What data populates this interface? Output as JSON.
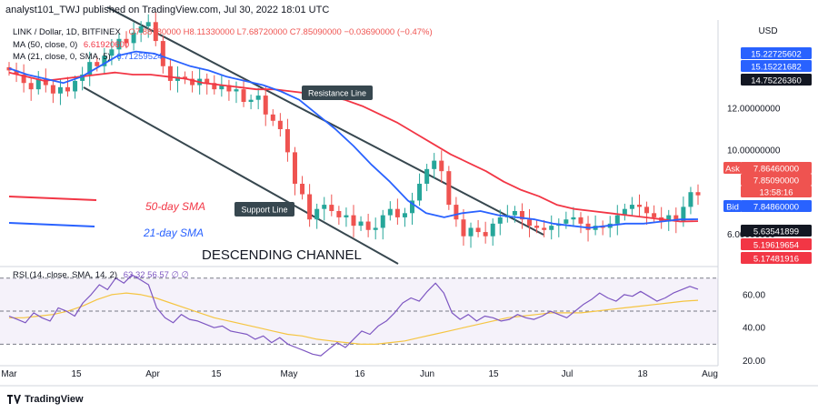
{
  "header": {
    "attribution": "analyst101_TWJ published on TradingView.com, Jul 30, 2022 18:01 UTC"
  },
  "legend": {
    "symbol": "LINK / Dollar, 1D, BITFINEX",
    "ohlc": "O7.88780000  H8.11330000  L7.68720000  C7.85090000  −0.03690000 (−0.47%)",
    "ma50": "MA (50, close, 0)",
    "ma50_value": "6.61920600",
    "ma21": "MA (21, close, 0, SMA, 5)",
    "ma21_value": "6.71259524",
    "rsi": "RSI (14, close, SMA, 14, 2)",
    "rsi_values": "63.32  56.57  ∅  ∅"
  },
  "annotations": {
    "resistance": "Resistance Line",
    "support": "Support Line",
    "sma50": "50-day SMA",
    "sma21": "21-day SMA",
    "channel": "DESCENDING CHANNEL"
  },
  "axis": {
    "currency": "USD",
    "price_ticks": [
      "12.00000000",
      "10.00000000",
      "6.00000000"
    ],
    "rsi_ticks": [
      "60.00",
      "40.00",
      "20.00"
    ],
    "x_labels": [
      "Mar",
      "15",
      "Apr",
      "15",
      "May",
      "16",
      "Jun",
      "15",
      "Jul",
      "18",
      "Aug"
    ]
  },
  "price_tags": [
    {
      "text": "15.22725602",
      "color": "#2962ff"
    },
    {
      "text": "15.15221682",
      "color": "#2962ff"
    },
    {
      "text": "14.75226360",
      "color": "#131722"
    },
    {
      "text": "Ask",
      "color": "#ef5350"
    },
    {
      "text": "7.86460000",
      "color": "#ef5350"
    },
    {
      "text": "7.85090000",
      "color": "#ef5350"
    },
    {
      "text": "13:58:16",
      "color": "#ef5350"
    },
    {
      "text": "Bid",
      "color": "#2962ff"
    },
    {
      "text": "7.84860000",
      "color": "#2962ff"
    },
    {
      "text": "5.63541899",
      "color": "#131722"
    },
    {
      "text": "5.19619654",
      "color": "#f23645"
    },
    {
      "text": "5.17481916",
      "color": "#f23645"
    }
  ],
  "brand": "TradingView",
  "colors": {
    "up": "#26a69a",
    "down": "#ef5350",
    "ma50": "#f23645",
    "ma21": "#2962ff",
    "rsi": "#7e57c2",
    "rsi_ma": "#f5c542"
  },
  "chart_data": {
    "type": "candlestick",
    "price_scale": [
      4.5,
      16.2
    ],
    "closes": [
      13.8,
      13.6,
      13.2,
      12.9,
      13.4,
      13.1,
      12.7,
      13.0,
      12.8,
      13.3,
      13.6,
      14.2,
      14.0,
      14.5,
      14.8,
      15.3,
      15.1,
      15.6,
      15.9,
      16.1,
      15.2,
      14.0,
      13.3,
      13.5,
      13.4,
      13.1,
      13.4,
      13.2,
      12.9,
      13.1,
      12.8,
      12.9,
      12.3,
      12.4,
      12.6,
      11.7,
      11.4,
      11.0,
      9.9,
      8.4,
      7.9,
      6.7,
      7.2,
      7.4,
      7.1,
      6.8,
      6.9,
      6.4,
      6.6,
      6.2,
      6.3,
      6.9,
      7.2,
      6.8,
      7.0,
      7.6,
      8.4,
      9.1,
      9.5,
      9.0,
      7.4,
      6.7,
      5.9,
      6.3,
      6.1,
      5.9,
      6.5,
      6.8,
      6.9,
      7.1,
      6.7,
      6.4,
      6.3,
      6.2,
      6.4,
      6.5,
      6.7,
      6.8,
      6.5,
      6.2,
      6.4,
      6.3,
      6.5,
      6.9,
      7.2,
      7.4,
      7.3,
      7.0,
      6.8,
      6.6,
      6.9,
      6.6,
      7.3,
      8.0,
      7.85
    ],
    "sma50": [
      13.7,
      13.5,
      13.3,
      13.4,
      13.5,
      13.6,
      13.7,
      13.6,
      13.6,
      13.5,
      13.4,
      13.2,
      13.1,
      13.0,
      12.9,
      12.9,
      12.8,
      12.7,
      12.6,
      12.4,
      12.1,
      11.7,
      11.3,
      10.8,
      10.3,
      9.8,
      9.4,
      9.0,
      8.5,
      8.1,
      7.8,
      7.4,
      7.2,
      7.1,
      7.0,
      6.9,
      6.8,
      6.7,
      6.6,
      6.62
    ],
    "sma21": [
      13.9,
      13.6,
      13.4,
      13.2,
      13.5,
      14.0,
      14.5,
      14.7,
      14.6,
      14.3,
      14.0,
      13.8,
      13.5,
      13.3,
      13.1,
      12.8,
      12.4,
      11.7,
      11.0,
      10.2,
      9.3,
      8.5,
      7.6,
      7.0,
      6.8,
      7.0,
      7.1,
      6.9,
      6.8,
      6.7,
      6.5,
      6.4,
      6.3,
      6.4,
      6.5,
      6.5,
      6.6,
      6.7,
      6.71
    ],
    "rsi": [
      47,
      45,
      43,
      49,
      46,
      44,
      52,
      50,
      47,
      55,
      60,
      66,
      63,
      70,
      67,
      72,
      69,
      66,
      52,
      46,
      43,
      48,
      45,
      44,
      42,
      40,
      41,
      38,
      37,
      36,
      33,
      35,
      31,
      34,
      30,
      28,
      26,
      24,
      23,
      27,
      31,
      28,
      33,
      38,
      36,
      41,
      44,
      49,
      55,
      58,
      56,
      62,
      67,
      61,
      49,
      45,
      48,
      44,
      47,
      46,
      44,
      45,
      48,
      46,
      45,
      47,
      50,
      48,
      46,
      50,
      54,
      57,
      61,
      58,
      56,
      60,
      59,
      62,
      59,
      56,
      58,
      61,
      63,
      65,
      63.32
    ],
    "rsi_ma": [
      46,
      46,
      47,
      48,
      50,
      53,
      57,
      60,
      61,
      60,
      58,
      55,
      52,
      49,
      46,
      44,
      42,
      40,
      38,
      36,
      35,
      33,
      32,
      31,
      30,
      30,
      31,
      32,
      34,
      36,
      38,
      40,
      42,
      44,
      46,
      47,
      48,
      49,
      49,
      49,
      50,
      51,
      52,
      53,
      54,
      55,
      56,
      56.57
    ],
    "rsi_levels": [
      70,
      50,
      30
    ],
    "rsi_range": [
      17,
      77
    ]
  }
}
